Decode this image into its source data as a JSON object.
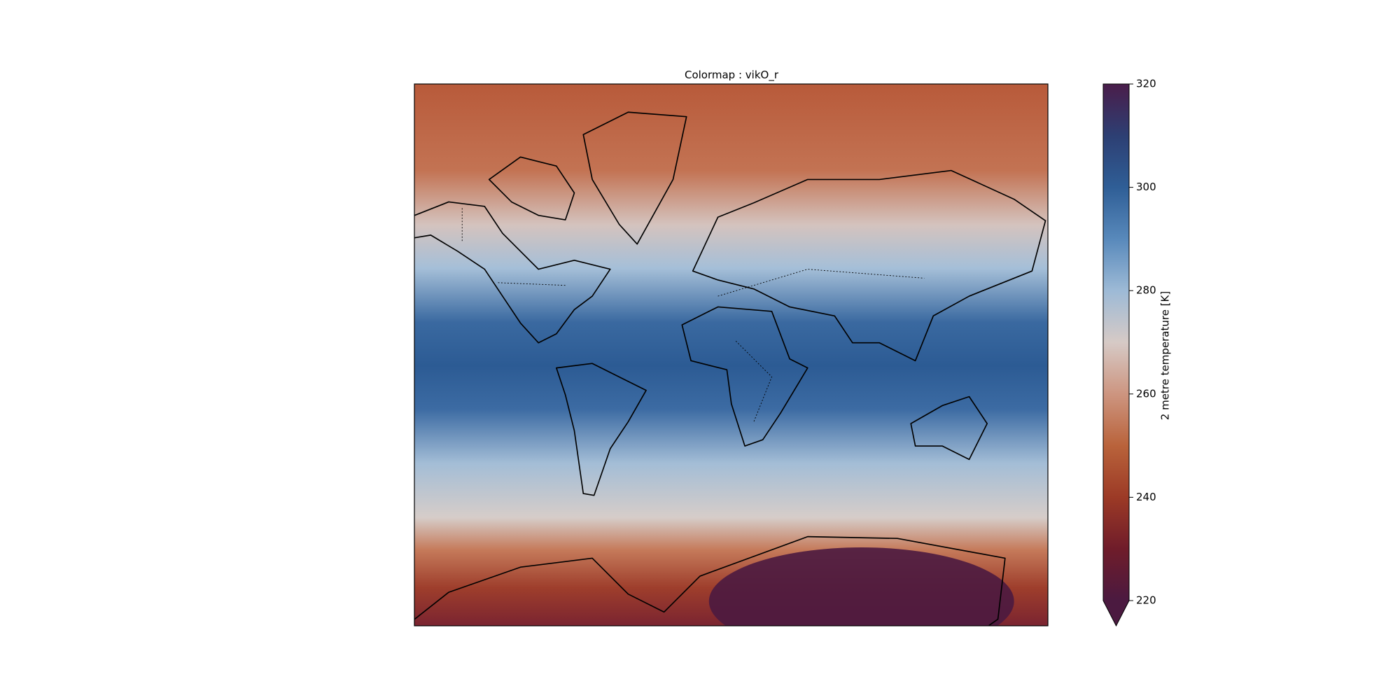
{
  "title": "Colormap : vikO_r",
  "colorbar": {
    "label": "2 metre temperature [K]",
    "lim": [
      220,
      320
    ],
    "ticks": [
      220,
      240,
      260,
      280,
      300,
      320
    ],
    "extend": "min",
    "colors": [
      "#4b1a40",
      "#6f1c2a",
      "#9c3a26",
      "#b9633b",
      "#cd9580",
      "#d6cac6",
      "#9dbad6",
      "#5889bb",
      "#2f5e96",
      "#2d3f73",
      "#4a1d4a"
    ]
  }
}
